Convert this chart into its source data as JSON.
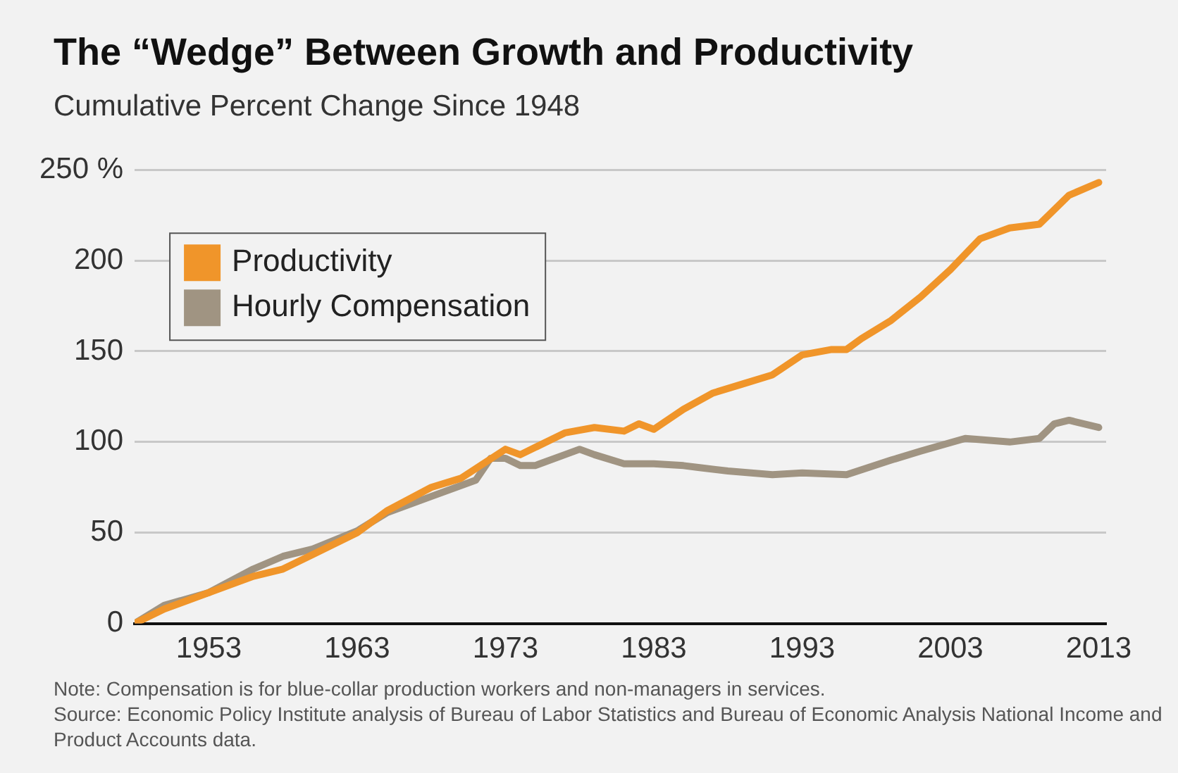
{
  "chart_data": {
    "type": "line",
    "title": "The “Wedge” Between Growth and Productivity",
    "subtitle": "Cumulative Percent Change Since 1948",
    "annotations": [
      "Note: Compensation is for blue-collar production workers and non-managers in services.",
      "Source: Economic Policy Institute analysis of Bureau of Labor Statistics and Bureau of Economic Analysis National Income and Product Accounts data."
    ],
    "series": [
      {
        "name": "Productivity",
        "color": "#f0952a",
        "x": [
          1948,
          1950,
          1953,
          1956,
          1958,
          1960,
          1963,
          1965,
          1968,
          1970,
          1973,
          1974,
          1975,
          1977,
          1979,
          1981,
          1982,
          1983,
          1985,
          1987,
          1989,
          1991,
          1993,
          1995,
          1996,
          1997,
          1999,
          2001,
          2003,
          2005,
          2007,
          2009,
          2011,
          2013
        ],
        "values": [
          0,
          8,
          17,
          26,
          30,
          38,
          50,
          62,
          75,
          80,
          96,
          93,
          97,
          105,
          108,
          106,
          110,
          107,
          118,
          127,
          132,
          137,
          148,
          151,
          151,
          157,
          167,
          180,
          195,
          212,
          218,
          220,
          236,
          243
        ]
      },
      {
        "name": "Hourly Compensation",
        "color": "#a09482",
        "x": [
          1948,
          1950,
          1953,
          1956,
          1958,
          1960,
          1963,
          1965,
          1968,
          1971,
          1972,
          1973,
          1974,
          1975,
          1977,
          1978,
          1979,
          1981,
          1983,
          1985,
          1986,
          1988,
          1991,
          1993,
          1996,
          1999,
          2001,
          2004,
          2007,
          2009,
          2010,
          2011,
          2013
        ],
        "values": [
          0,
          10,
          17,
          30,
          37,
          41,
          51,
          61,
          70,
          79,
          91,
          91,
          87,
          87,
          93,
          96,
          93,
          88,
          88,
          87,
          86,
          84,
          82,
          83,
          82,
          90,
          95,
          102,
          100,
          102,
          110,
          112,
          108
        ]
      }
    ],
    "xlim": [
      1948,
      2013.5
    ],
    "xticks": [
      1953,
      1963,
      1973,
      1983,
      1993,
      2003,
      2013
    ],
    "ylim": [
      0,
      250
    ],
    "yticks": [
      0,
      50,
      100,
      150,
      200,
      {
        "value": 250,
        "label": "250 %"
      }
    ],
    "grid": "y",
    "legend": "top left",
    "marker": "none",
    "line_style": "solid"
  }
}
